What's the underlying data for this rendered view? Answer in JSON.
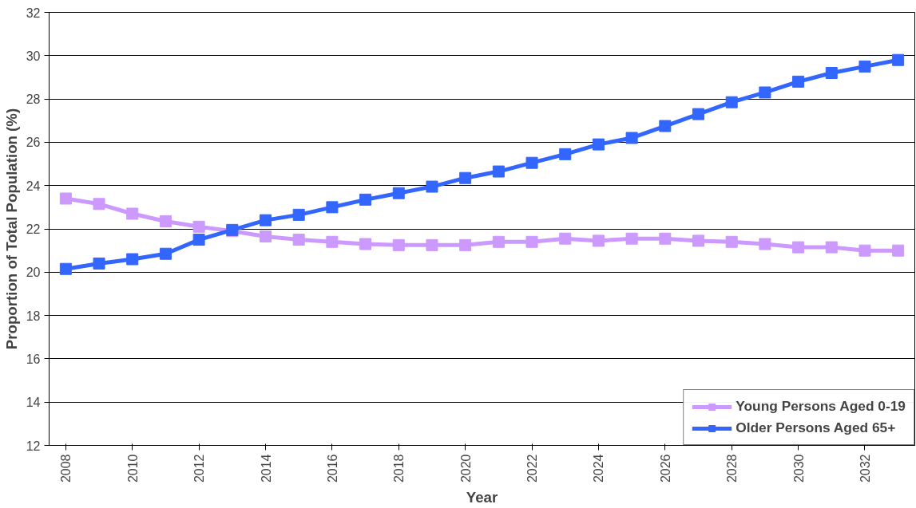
{
  "chart_data": {
    "type": "line",
    "xlabel": "Year",
    "ylabel": "Proportion of Total Population (%)",
    "x": [
      2008,
      2009,
      2010,
      2011,
      2012,
      2013,
      2014,
      2015,
      2016,
      2017,
      2018,
      2019,
      2020,
      2021,
      2022,
      2023,
      2024,
      2025,
      2026,
      2027,
      2028,
      2029,
      2030,
      2031,
      2032,
      2033
    ],
    "series": [
      {
        "name": "Young Persons Aged 0-19",
        "color": "#cc99ff",
        "values": [
          23.4,
          23.15,
          22.7,
          22.35,
          22.1,
          21.9,
          21.65,
          21.5,
          21.4,
          21.3,
          21.25,
          21.25,
          21.25,
          21.4,
          21.4,
          21.55,
          21.45,
          21.55,
          21.55,
          21.45,
          21.4,
          21.3,
          21.15,
          21.15,
          21.0,
          21.0
        ]
      },
      {
        "name": "Older Persons Aged 65+",
        "color": "#3366ff",
        "values": [
          20.15,
          20.4,
          20.6,
          20.85,
          21.5,
          21.95,
          22.4,
          22.65,
          23.0,
          23.35,
          23.65,
          23.95,
          24.35,
          24.65,
          25.05,
          25.45,
          25.9,
          26.2,
          26.75,
          27.3,
          27.85,
          28.3,
          28.8,
          29.2,
          29.5,
          29.8
        ]
      }
    ],
    "xlim": [
      2007.5,
      2033.5
    ],
    "xticks": [
      2008,
      2010,
      2012,
      2014,
      2016,
      2018,
      2020,
      2022,
      2024,
      2026,
      2028,
      2030,
      2032
    ],
    "ylim": [
      12,
      32
    ],
    "yticks": [
      12,
      14,
      16,
      18,
      20,
      22,
      24,
      26,
      28,
      30,
      32
    ],
    "grid": "y",
    "legend": "bottom right",
    "marker": "square",
    "line_style": "solid"
  }
}
